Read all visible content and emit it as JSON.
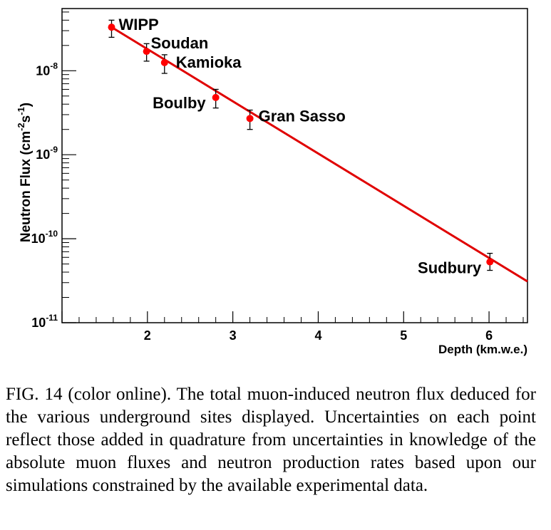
{
  "chart_data": {
    "type": "scatter",
    "xlabel": "Depth (km.w.e.)",
    "ylabel": "Neutron Flux (cm",
    "ylabel_sup1": "-2",
    "ylabel_mid": "s",
    "ylabel_sup2": "-1",
    "ylabel_end": ")",
    "ylog": true,
    "xlim": [
      1.0,
      6.45
    ],
    "ylim": [
      1e-11,
      5.5e-08
    ],
    "x_ticks": [
      2,
      3,
      4,
      5,
      6
    ],
    "x_tick_labels": [
      "2",
      "3",
      "4",
      "5",
      "6"
    ],
    "y_tick_base": "10",
    "y_ticks": [
      {
        "value": 1e-08,
        "exp": "-8"
      },
      {
        "value": 1e-09,
        "exp": "-9"
      },
      {
        "value": 1e-10,
        "exp": "-10"
      },
      {
        "value": 1e-11,
        "exp": "-11"
      }
    ],
    "points": [
      {
        "name": "WIPP",
        "x": 1.58,
        "y": 3.3e-08,
        "ylow": 2.5e-08,
        "yhigh": 4e-08
      },
      {
        "name": "Soudan",
        "x": 1.99,
        "y": 1.7e-08,
        "ylow": 1.3e-08,
        "yhigh": 2.1e-08
      },
      {
        "name": "Kamioka",
        "x": 2.2,
        "y": 1.25e-08,
        "ylow": 9.3e-09,
        "yhigh": 1.55e-08
      },
      {
        "name": "Boulby",
        "x": 2.8,
        "y": 4.8e-09,
        "ylow": 3.6e-09,
        "yhigh": 6e-09
      },
      {
        "name": "Gran Sasso",
        "x": 3.2,
        "y": 2.7e-09,
        "ylow": 2e-09,
        "yhigh": 3.4e-09
      },
      {
        "name": "Sudbury",
        "x": 6.01,
        "y": 5.3e-11,
        "ylow": 4.2e-11,
        "yhigh": 6.7e-11
      }
    ],
    "fit_line": {
      "x": [
        1.58,
        6.45
      ],
      "y": [
        3.3e-08,
        3.1e-11
      ]
    },
    "point_color": "#ff0000",
    "line_color": "#e00000",
    "grid": false
  },
  "caption": "FIG. 14 (color online).   The total muon-induced neutron flux deduced for the various underground sites displayed. Uncertainties on each point reflect those added in quadrature from uncertainties in knowledge of the absolute muon fluxes and neutron production rates based upon our simulations constrained by the available experimental data."
}
